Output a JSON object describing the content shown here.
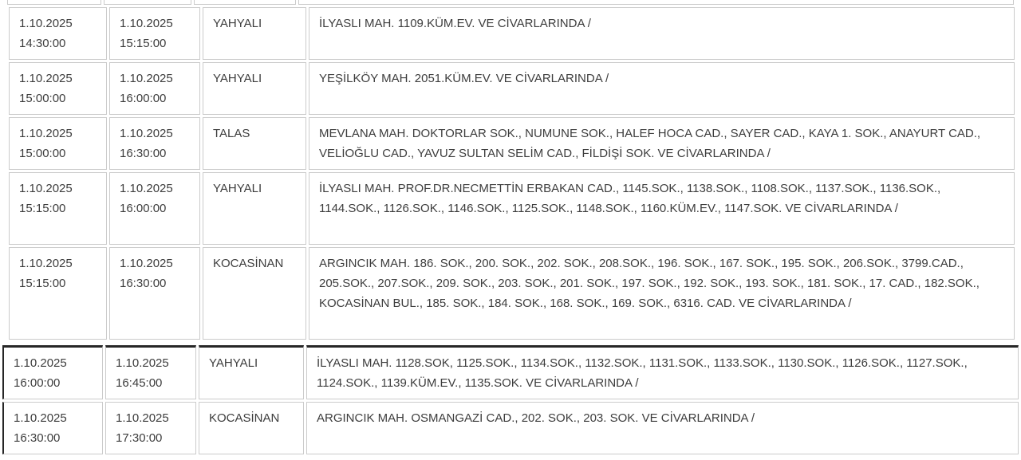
{
  "colors": {
    "page_background": "#ffffff",
    "cell_background": "#ffffff",
    "text": "#3d3d3d",
    "border_light": "#cbcbcb",
    "border_dark": "#262626"
  },
  "table": {
    "columns": [
      "start_datetime",
      "end_datetime",
      "district",
      "areas"
    ],
    "upper_rows": [
      {
        "start_date": "1.10.2025",
        "start_time": "14:30:00",
        "end_date": "1.10.2025",
        "end_time": "15:15:00",
        "district": "YAHYALI",
        "areas": "İLYASLI MAH. 1109.KÜM.EV. VE CİVARLARINDA /"
      },
      {
        "start_date": "1.10.2025",
        "start_time": "15:00:00",
        "end_date": "1.10.2025",
        "end_time": "16:00:00",
        "district": "YAHYALI",
        "areas": "YEŞİLKÖY MAH. 2051.KÜM.EV. VE CİVARLARINDA /"
      },
      {
        "start_date": "1.10.2025",
        "start_time": "15:00:00",
        "end_date": "1.10.2025",
        "end_time": "16:30:00",
        "district": "TALAS",
        "areas": "MEVLANA MAH. DOKTORLAR SOK., NUMUNE SOK., HALEF HOCA CAD., SAYER CAD., KAYA 1. SOK., ANAYURT CAD., VELİOĞLU CAD., YAVUZ SULTAN SELİM CAD., FİLDİŞİ SOK. VE CİVARLARINDA /"
      },
      {
        "start_date": "1.10.2025",
        "start_time": "15:15:00",
        "end_date": "1.10.2025",
        "end_time": "16:00:00",
        "district": "YAHYALI",
        "areas": "İLYASLI MAH. PROF.DR.NECMETTİN ERBAKAN CAD., 1145.SOK., 1138.SOK., 1108.SOK., 1137.SOK., 1136.SOK., 1144.SOK., 1126.SOK., 1146.SOK., 1125.SOK., 1148.SOK., 1160.KÜM.EV., 1147.SOK. VE CİVARLARINDA /"
      },
      {
        "start_date": "1.10.2025",
        "start_time": "15:15:00",
        "end_date": "1.10.2025",
        "end_time": "16:30:00",
        "district": "KOCASİNAN",
        "areas": "ARGINCIK MAH. 186. SOK., 200. SOK., 202. SOK., 208.SOK., 196. SOK., 167. SOK., 195. SOK., 206.SOK., 3799.CAD., 205.SOK., 207.SOK., 209. SOK., 203. SOK., 201. SOK., 197. SOK., 192. SOK., 193. SOK., 181. SOK., 17. CAD., 182.SOK., KOCASİNAN BUL., 185. SOK., 184. SOK., 168. SOK., 169. SOK., 6316. CAD. VE CİVARLARINDA /"
      }
    ],
    "lower_rows": [
      {
        "start_date": "1.10.2025",
        "start_time": "16:00:00",
        "end_date": "1.10.2025",
        "end_time": "16:45:00",
        "district": "YAHYALI",
        "areas": "İLYASLI MAH. 1128.SOK, 1125.SOK., 1134.SOK., 1132.SOK., 1131.SOK., 1133.SOK., 1130.SOK., 1126.SOK., 1127.SOK., 1124.SOK., 1139.KÜM.EV., 1135.SOK. VE CİVARLARINDA /"
      },
      {
        "start_date": "1.10.2025",
        "start_time": "16:30:00",
        "end_date": "1.10.2025",
        "end_time": "17:30:00",
        "district": "KOCASİNAN",
        "areas": "ARGINCIK MAH. OSMANGAZİ CAD., 202. SOK., 203. SOK. VE CİVARLARINDA /"
      }
    ]
  }
}
